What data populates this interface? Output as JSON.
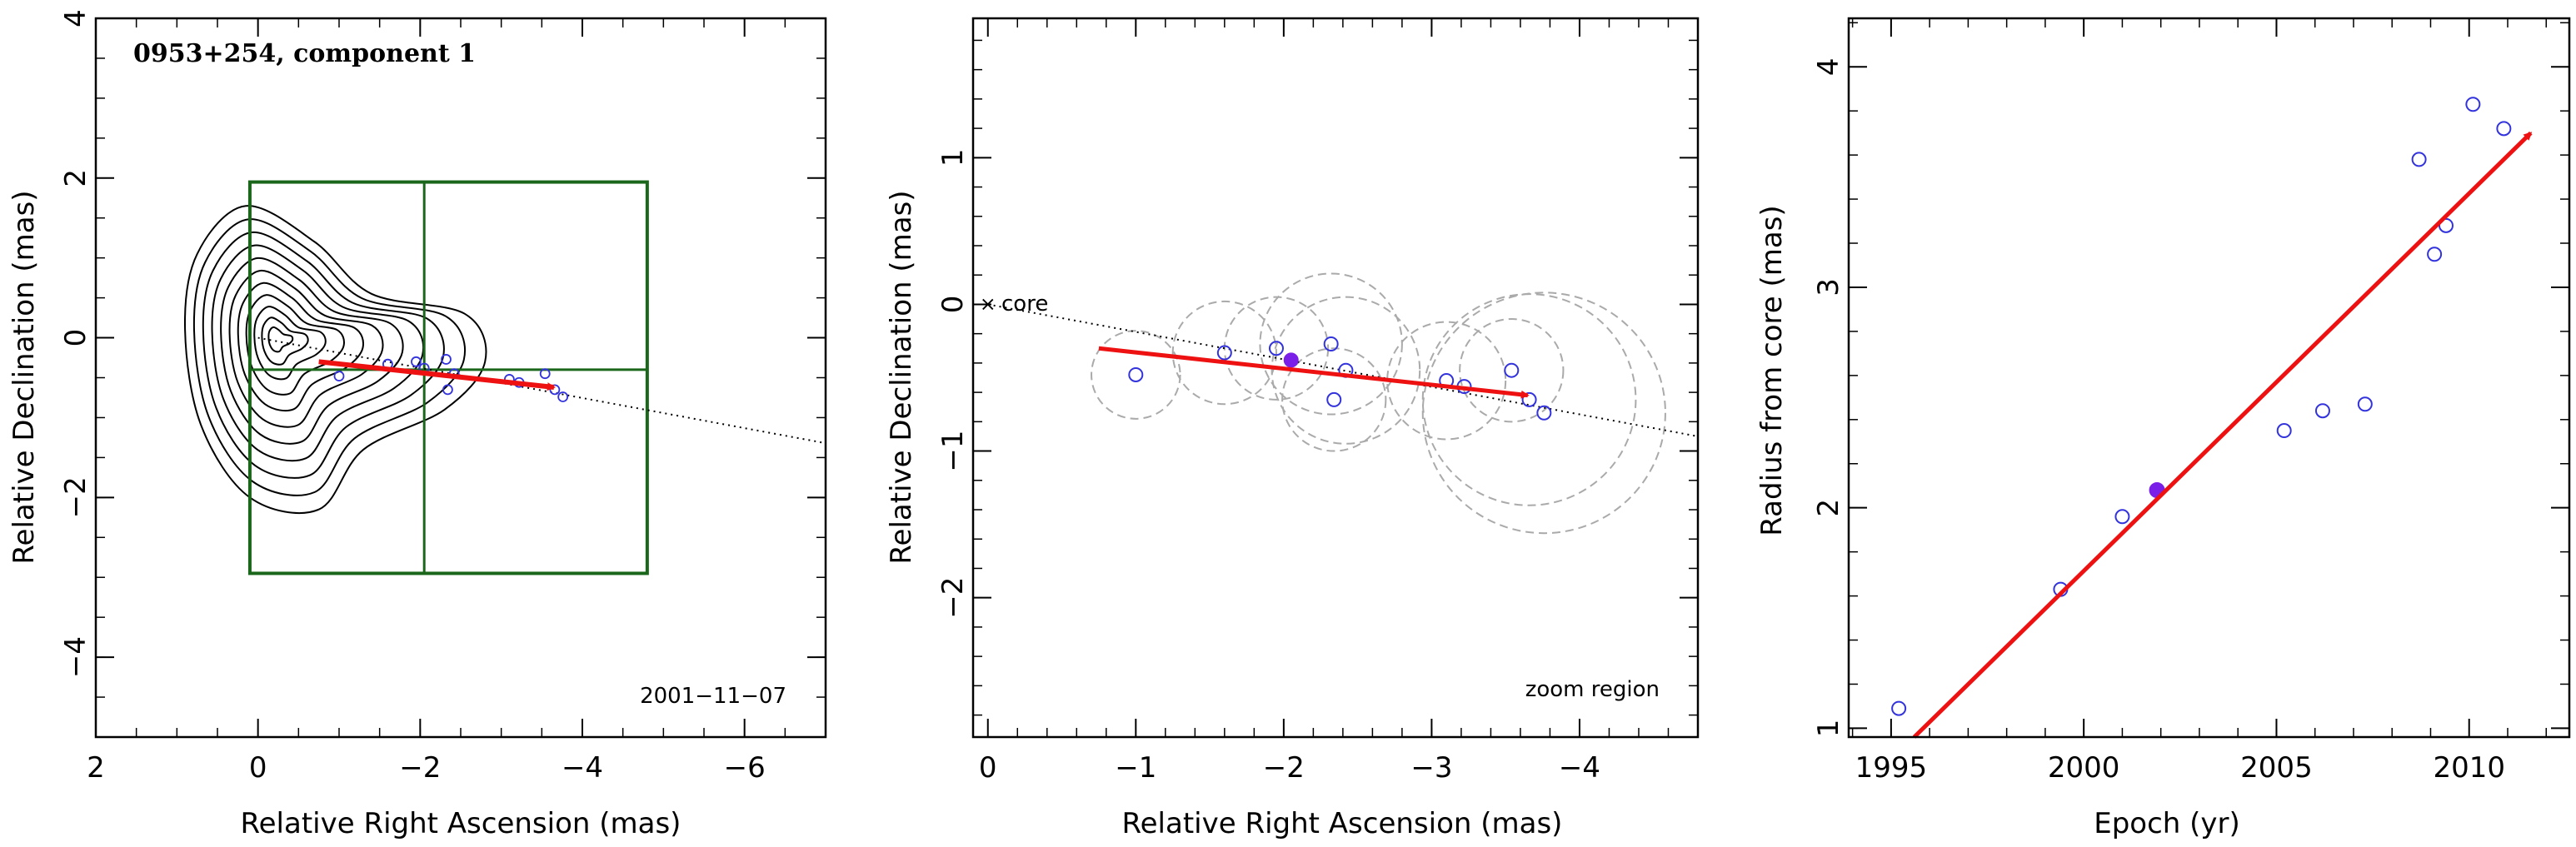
{
  "colors": {
    "axis": "#000000",
    "contour": "#000000",
    "box": "#1a661a",
    "arrow": "#ee1111",
    "point": "#3333dd",
    "highlight": "#7a1fe8",
    "beam": "#aaaaaa"
  },
  "chart_data": [
    {
      "type": "contour",
      "title": "0953+254, component 1",
      "date_label": "2001−11−07",
      "xlabel": "Relative Right Ascension (mas)",
      "ylabel": "Relative Declination (mas)",
      "xlim": [
        2,
        -7
      ],
      "ylim": [
        -5,
        4
      ],
      "xticks": [
        2,
        0,
        -2,
        -4,
        -6
      ],
      "yticks": [
        -4,
        -2,
        0,
        2,
        4
      ],
      "xtick_labels": [
        "2",
        "0",
        "−2",
        "−4",
        "−6"
      ],
      "ytick_labels": [
        "−4",
        "−2",
        "0",
        "2",
        "4"
      ],
      "zoom_box": {
        "x_range": [
          0.1,
          -4.8
        ],
        "y_range": [
          -2.95,
          1.95
        ],
        "cross_x": -2.05,
        "cross_y": -0.4
      },
      "jet_direction_line": {
        "x": [
          0.0,
          -7.0
        ],
        "y": [
          0.0,
          -1.32
        ]
      },
      "motion_arrow": {
        "from": [
          -0.75,
          -0.3
        ],
        "to": [
          -3.65,
          -0.62
        ]
      },
      "contour_levels": 11,
      "component_positions": {
        "x": [
          -1.0,
          -1.6,
          -1.95,
          -2.05,
          -2.32,
          -2.34,
          -2.42,
          -3.1,
          -3.22,
          -3.54,
          -3.66,
          -3.76
        ],
        "y": [
          -0.48,
          -0.33,
          -0.3,
          -0.38,
          -0.27,
          -0.65,
          -0.45,
          -0.52,
          -0.56,
          -0.45,
          -0.65,
          -0.74
        ]
      }
    },
    {
      "type": "scatter",
      "xlabel": "Relative Right Ascension (mas)",
      "ylabel": "Relative Declination (mas)",
      "annotation": "zoom region",
      "core_label": "core",
      "xlim": [
        0.1,
        -4.8
      ],
      "ylim": [
        -2.95,
        1.95
      ],
      "xticks": [
        0,
        -1,
        -2,
        -3,
        -4
      ],
      "yticks": [
        -2,
        -1,
        0,
        1
      ],
      "xtick_labels": [
        "0",
        "−1",
        "−2",
        "−3",
        "−4"
      ],
      "ytick_labels": [
        "−2",
        "−1",
        "0",
        "1"
      ],
      "jet_direction_line": {
        "x": [
          0.0,
          -4.8
        ],
        "y": [
          0.0,
          -0.9
        ]
      },
      "motion_arrow": {
        "from": [
          -0.75,
          -0.3
        ],
        "to": [
          -3.65,
          -0.62
        ]
      },
      "points": {
        "x": [
          -1.0,
          -1.6,
          -1.95,
          -2.32,
          -2.34,
          -2.42,
          -3.1,
          -3.22,
          -3.54,
          -3.66,
          -3.76
        ],
        "y": [
          -0.48,
          -0.33,
          -0.3,
          -0.27,
          -0.65,
          -0.45,
          -0.52,
          -0.56,
          -0.45,
          -0.65,
          -0.74
        ]
      },
      "highlight_point": {
        "x": -2.05,
        "y": -0.38
      },
      "beam_circles": [
        {
          "x": -1.0,
          "y": -0.48,
          "r": 0.3
        },
        {
          "x": -1.6,
          "y": -0.33,
          "r": 0.35
        },
        {
          "x": -1.95,
          "y": -0.3,
          "r": 0.35
        },
        {
          "x": -2.32,
          "y": -0.27,
          "r": 0.48
        },
        {
          "x": -2.34,
          "y": -0.65,
          "r": 0.35
        },
        {
          "x": -2.42,
          "y": -0.45,
          "r": 0.5
        },
        {
          "x": -3.1,
          "y": -0.52,
          "r": 0.4
        },
        {
          "x": -3.54,
          "y": -0.45,
          "r": 0.35
        },
        {
          "x": -3.66,
          "y": -0.65,
          "r": 0.72
        },
        {
          "x": -3.76,
          "y": -0.74,
          "r": 0.82
        }
      ]
    },
    {
      "type": "scatter",
      "xlabel": "Epoch (yr)",
      "ylabel": "Radius from core (mas)",
      "xlim": [
        1993.9,
        2012.6
      ],
      "ylim": [
        0.96,
        4.22
      ],
      "xticks": [
        1995,
        2000,
        2005,
        2010
      ],
      "yticks": [
        1,
        2,
        3,
        4
      ],
      "xtick_labels": [
        "1995",
        "2000",
        "2005",
        "2010"
      ],
      "ytick_labels": [
        "1",
        "2",
        "3",
        "4"
      ],
      "points": {
        "x": [
          1995.2,
          1999.4,
          2001.0,
          2005.2,
          2006.2,
          2007.3,
          2008.7,
          2009.1,
          2009.4,
          2010.1,
          2010.9
        ],
        "y": [
          1.09,
          1.63,
          1.96,
          2.35,
          2.44,
          2.47,
          3.58,
          3.15,
          3.28,
          3.83,
          3.72
        ]
      },
      "highlight_point": {
        "x": 2001.9,
        "y": 2.08
      },
      "fit_line": {
        "x": [
          1995.6,
          2011.6
        ],
        "y": [
          0.96,
          3.7
        ]
      }
    }
  ]
}
